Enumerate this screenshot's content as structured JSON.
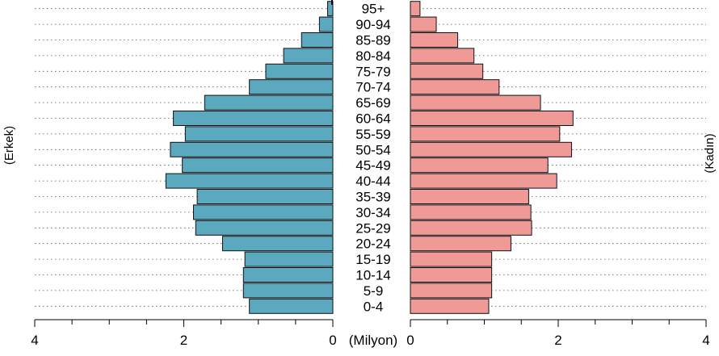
{
  "chart_data": {
    "type": "bar",
    "orientation": "horizontal-pyramid",
    "categories": [
      "0-4",
      "5-9",
      "10-14",
      "15-19",
      "20-24",
      "25-29",
      "30-34",
      "35-39",
      "40-44",
      "45-49",
      "50-54",
      "55-59",
      "60-64",
      "65-69",
      "70-74",
      "75-79",
      "80-84",
      "85-89",
      "90-94",
      "95+"
    ],
    "series": [
      {
        "name": "(Erkek)",
        "side": "left",
        "color": "#5aa9bf",
        "values": [
          1.12,
          1.2,
          1.2,
          1.18,
          1.48,
          1.84,
          1.87,
          1.82,
          2.24,
          2.02,
          2.18,
          1.98,
          2.14,
          1.72,
          1.12,
          0.9,
          0.66,
          0.42,
          0.18,
          0.07
        ]
      },
      {
        "name": "(Kadın)",
        "side": "right",
        "color": "#f09a98",
        "values": [
          1.06,
          1.1,
          1.1,
          1.1,
          1.36,
          1.64,
          1.63,
          1.6,
          1.98,
          1.86,
          2.18,
          2.02,
          2.2,
          1.76,
          1.2,
          0.98,
          0.86,
          0.64,
          0.35,
          0.13
        ]
      }
    ],
    "xlim": [
      0,
      4
    ],
    "x_ticks_left": [
      "4",
      "2",
      "0"
    ],
    "x_ticks_right": [
      "0",
      "2",
      "4"
    ],
    "xlabel": "(Milyon)",
    "grid": "dotted-horizontal"
  }
}
